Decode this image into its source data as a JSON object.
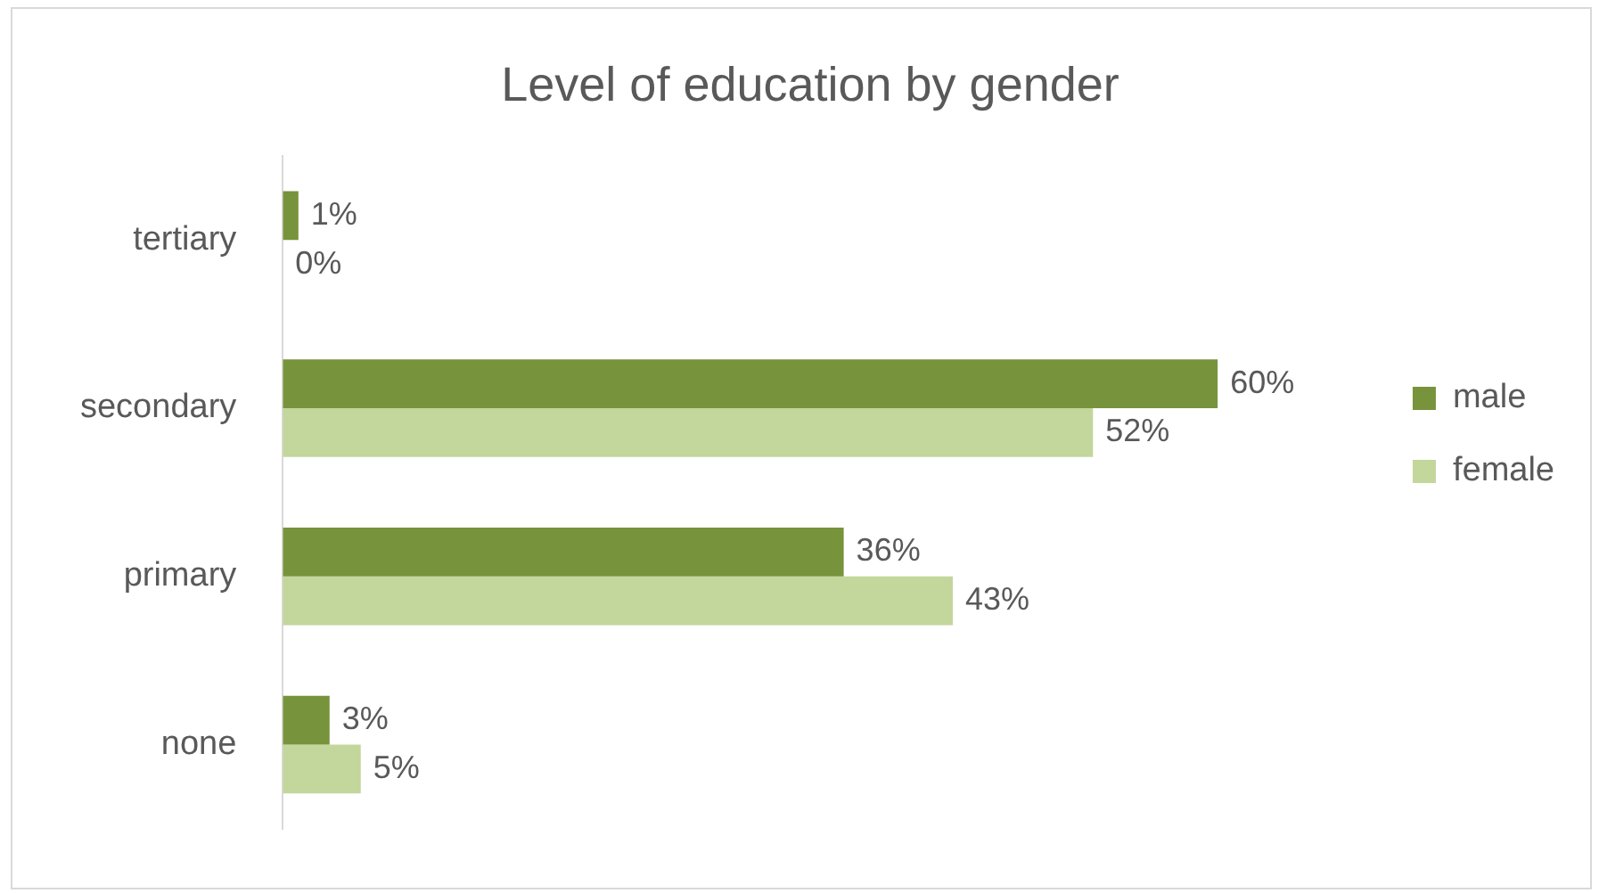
{
  "chart_data": {
    "type": "bar",
    "title": "Level of education by gender",
    "orientation": "horizontal",
    "categories": [
      "tertiary",
      "secondary",
      "primary",
      "none"
    ],
    "series": [
      {
        "name": "male",
        "color": "#77933c",
        "values": [
          1,
          60,
          36,
          3
        ],
        "value_labels": [
          "1%",
          "60%",
          "36%",
          "3%"
        ]
      },
      {
        "name": "female",
        "color": "#c3d69b",
        "values": [
          0,
          52,
          43,
          5
        ],
        "value_labels": [
          "0%",
          "52%",
          "43%",
          "5%"
        ]
      }
    ],
    "tick_labels": "y",
    "grid": false,
    "legend": "right"
  }
}
